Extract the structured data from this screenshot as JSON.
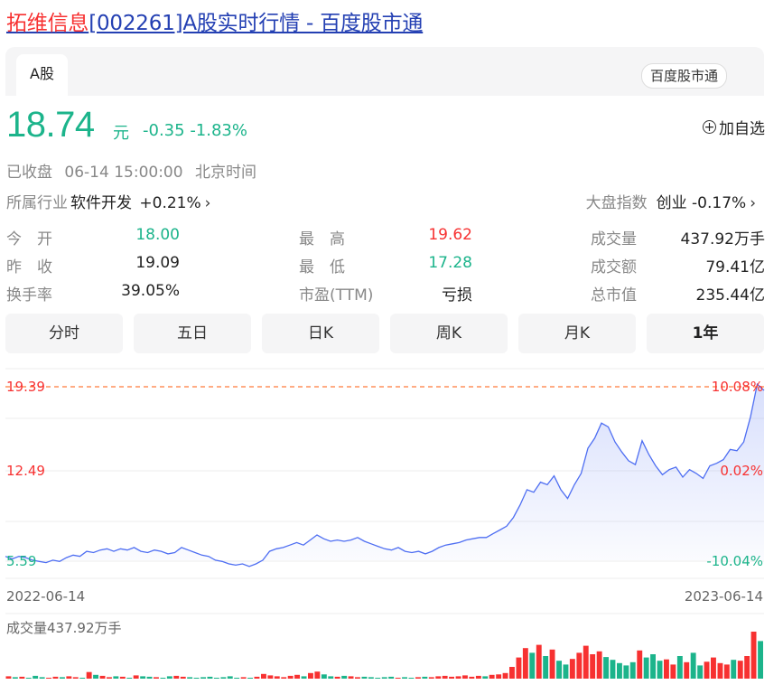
{
  "page": {
    "title_highlight": "拓维信息",
    "title_rest": "[002261]A股实时行情 - 百度股市通"
  },
  "header": {
    "tab_label": "A股",
    "brand": "百度股市通"
  },
  "quote": {
    "price": "18.74",
    "unit": "元",
    "change": "-0.35",
    "change_pct": "-1.83%",
    "add_watch": "加自选",
    "status": "已收盘",
    "date_time": "06-14 15:00:00",
    "timezone": "北京时间",
    "industry_label": "所属行业",
    "industry_name": "软件开发",
    "industry_change": "+0.21%",
    "market_label": "大盘指数",
    "market_name": "创业",
    "market_change": "-0.17%"
  },
  "stats": [
    {
      "label": "今　开",
      "value": "18.00",
      "color": "#1cb48b"
    },
    {
      "label": "最　高",
      "value": "19.62",
      "color": "#f73131"
    },
    {
      "label": "成交量",
      "value": "437.92万手",
      "color": "#222222"
    },
    {
      "label": "昨　收",
      "value": "19.09",
      "color": "#222222"
    },
    {
      "label": "最　低",
      "value": "17.28",
      "color": "#1cb48b"
    },
    {
      "label": "成交额",
      "value": "79.41亿",
      "color": "#222222"
    },
    {
      "label": "换手率",
      "value": "39.05%",
      "color": "#222222"
    },
    {
      "label": "市盈(TTM)",
      "value": "亏损",
      "color": "#222222"
    },
    {
      "label": "总市值",
      "value": "235.44亿",
      "color": "#222222"
    }
  ],
  "period_tabs": [
    "分时",
    "五日",
    "日K",
    "周K",
    "月K",
    "1年"
  ],
  "active_tab": "1年",
  "colors": {
    "up": "#f73131",
    "down": "#1cb48b",
    "line": "#4e6ef2",
    "link": "#2440b3"
  },
  "chart_data": {
    "type": "line",
    "y_labels": {
      "top": "19.39",
      "mid": "12.49",
      "bottom": "5.59"
    },
    "pct_labels": {
      "top": "10.08%",
      "mid": "0.02%",
      "bottom": "-10.04%"
    },
    "x_labels": [
      "2022-06-14",
      "2023-06-14"
    ],
    "ylim": [
      5.59,
      19.39
    ],
    "reference_line": 19.39,
    "volume_label": "成交量437.92万手",
    "series": [
      {
        "values": [
          5.9,
          5.7,
          5.9,
          5.8,
          5.6,
          5.5,
          5.4,
          5.6,
          5.5,
          5.8,
          6.0,
          5.9,
          6.3,
          6.2,
          6.4,
          6.5,
          6.3,
          6.5,
          6.4,
          6.6,
          6.3,
          6.2,
          6.4,
          6.3,
          6.1,
          6.2,
          6.6,
          6.4,
          6.2,
          6.0,
          5.9,
          5.6,
          5.5,
          5.3,
          5.2,
          5.3,
          5.1,
          5.3,
          5.6,
          6.3,
          6.5,
          6.6,
          6.8,
          7.0,
          6.8,
          7.2,
          7.6,
          7.3,
          7.1,
          7.2,
          7.1,
          7.2,
          7.4,
          7.1,
          6.9,
          6.7,
          6.5,
          6.4,
          6.6,
          6.3,
          6.2,
          6.3,
          6.1,
          6.3,
          6.6,
          6.8,
          6.9,
          7.0,
          7.2,
          7.3,
          7.4,
          7.4,
          7.7,
          8.0,
          8.3,
          9.0,
          10.0,
          11.2,
          11.0,
          11.8,
          11.6,
          12.3,
          11.2,
          10.5,
          11.6,
          12.5,
          14.5,
          15.3,
          16.5,
          16.2,
          15.0,
          14.2,
          13.5,
          13.2,
          15.1,
          14.0,
          13.1,
          12.4,
          12.8,
          13.0,
          12.2,
          12.8,
          12.5,
          12.1,
          13.1,
          13.3,
          13.6,
          14.4,
          14.3,
          15.0,
          17.0,
          19.6,
          19.1
        ]
      }
    ],
    "volume_ratios": [
      0.05,
      0.03,
      0.04,
      0.02,
      0.06,
      0.03,
      0.02,
      0.04,
      0.03,
      0.05,
      0.03,
      0.02,
      0.14,
      0.08,
      0.06,
      0.03,
      0.05,
      0.04,
      0.02,
      0.07,
      0.05,
      0.04,
      0.03,
      0.02,
      0.05,
      0.06,
      0.04,
      0.03,
      0.02,
      0.03,
      0.04,
      0.02,
      0.03,
      0.05,
      0.02,
      0.03,
      0.02,
      0.04,
      0.1,
      0.07,
      0.05,
      0.03,
      0.06,
      0.08,
      0.05,
      0.12,
      0.15,
      0.09,
      0.05,
      0.04,
      0.06,
      0.05,
      0.03,
      0.04,
      0.03,
      0.02,
      0.03,
      0.04,
      0.02,
      0.03,
      0.02,
      0.03,
      0.04,
      0.03,
      0.05,
      0.06,
      0.04,
      0.05,
      0.07,
      0.04,
      0.06,
      0.05,
      0.08,
      0.09,
      0.12,
      0.25,
      0.45,
      0.65,
      0.55,
      0.72,
      0.48,
      0.62,
      0.38,
      0.3,
      0.42,
      0.55,
      0.7,
      0.52,
      0.58,
      0.46,
      0.4,
      0.33,
      0.28,
      0.35,
      0.6,
      0.45,
      0.52,
      0.38,
      0.41,
      0.3,
      0.48,
      0.35,
      0.55,
      0.28,
      0.36,
      0.45,
      0.33,
      0.3,
      0.4,
      0.38,
      0.48,
      1.0,
      0.8
    ],
    "volume_up": [
      1,
      0,
      1,
      0,
      0,
      0,
      1,
      1,
      0,
      1,
      1,
      0,
      1,
      0,
      1,
      1,
      0,
      1,
      0,
      1,
      0,
      0,
      1,
      0,
      0,
      1,
      1,
      0,
      0,
      0,
      0,
      0,
      0,
      0,
      0,
      1,
      0,
      1,
      1,
      1,
      1,
      1,
      1,
      1,
      0,
      1,
      1,
      0,
      0,
      1,
      0,
      1,
      1,
      0,
      0,
      0,
      0,
      0,
      1,
      0,
      0,
      1,
      0,
      1,
      1,
      1,
      1,
      1,
      1,
      1,
      1,
      0,
      1,
      1,
      1,
      1,
      1,
      1,
      0,
      1,
      0,
      1,
      0,
      0,
      1,
      1,
      1,
      1,
      1,
      0,
      0,
      0,
      0,
      0,
      1,
      0,
      0,
      0,
      1,
      1,
      0,
      1,
      0,
      0,
      1,
      1,
      1,
      1,
      0,
      1,
      1,
      1,
      0
    ]
  }
}
